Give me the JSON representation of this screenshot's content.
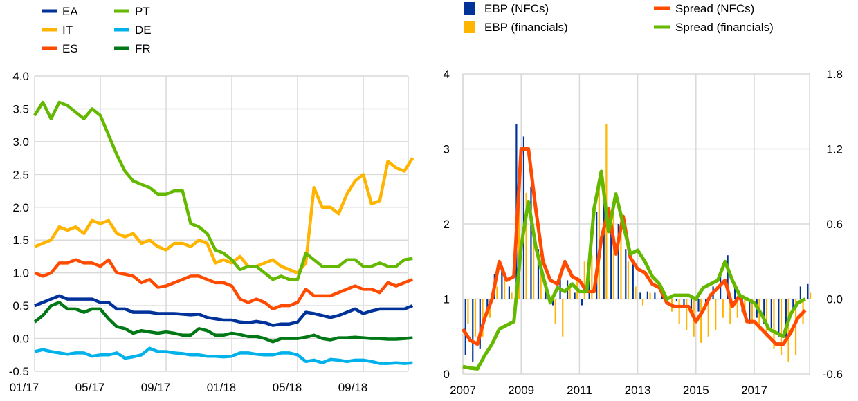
{
  "chart_data": [
    {
      "type": "line",
      "x_unit": "months since 01/17",
      "x_start": 0,
      "x_step": 0.5,
      "xlim": [
        0,
        23
      ],
      "ylim": [
        -0.5,
        4.0
      ],
      "yticks": [
        "4.0",
        "3.5",
        "3.0",
        "2.5",
        "2.0",
        "1.5",
        "1.0",
        "0.5",
        "0.0",
        "-0.5"
      ],
      "ytick_values": [
        4.0,
        3.5,
        3.0,
        2.5,
        2.0,
        1.5,
        1.0,
        0.5,
        0.0,
        -0.5
      ],
      "xticks": [
        "01/17",
        "05/17",
        "09/17",
        "01/18",
        "05/18",
        "09/18"
      ],
      "xtick_values": [
        0,
        4,
        8,
        12,
        16,
        20
      ],
      "grid": true,
      "legend_placement": "top-left",
      "series": [
        {
          "name": "EA",
          "color": "#003299",
          "values": [
            0.5,
            0.55,
            0.6,
            0.65,
            0.6,
            0.6,
            0.6,
            0.6,
            0.55,
            0.55,
            0.45,
            0.45,
            0.4,
            0.4,
            0.4,
            0.38,
            0.38,
            0.38,
            0.37,
            0.36,
            0.37,
            0.32,
            0.3,
            0.28,
            0.28,
            0.25,
            0.24,
            0.26,
            0.24,
            0.2,
            0.22,
            0.22,
            0.25,
            0.4,
            0.38,
            0.35,
            0.32,
            0.35,
            0.4,
            0.45,
            0.38,
            0.42,
            0.45,
            0.45,
            0.45,
            0.45,
            0.5
          ]
        },
        {
          "name": "IT",
          "color": "#FFB400",
          "values": [
            1.4,
            1.45,
            1.5,
            1.7,
            1.65,
            1.7,
            1.6,
            1.8,
            1.75,
            1.8,
            1.6,
            1.55,
            1.6,
            1.45,
            1.5,
            1.4,
            1.35,
            1.45,
            1.45,
            1.4,
            1.5,
            1.45,
            1.15,
            1.2,
            1.15,
            1.25,
            1.1,
            1.1,
            1.15,
            1.2,
            1.1,
            1.05,
            1.0,
            1.15,
            2.3,
            2.0,
            2.0,
            1.9,
            2.2,
            2.4,
            2.5,
            2.05,
            2.1,
            2.7,
            2.6,
            2.55,
            2.75
          ]
        },
        {
          "name": "ES",
          "color": "#FF4B00",
          "values": [
            1.0,
            0.95,
            1.0,
            1.15,
            1.15,
            1.2,
            1.15,
            1.15,
            1.1,
            1.2,
            1.0,
            0.98,
            0.95,
            0.85,
            0.9,
            0.78,
            0.8,
            0.85,
            0.9,
            0.95,
            0.95,
            0.9,
            0.85,
            0.85,
            0.8,
            0.6,
            0.55,
            0.6,
            0.55,
            0.45,
            0.5,
            0.5,
            0.55,
            0.75,
            0.65,
            0.65,
            0.65,
            0.7,
            0.75,
            0.8,
            0.75,
            0.75,
            0.7,
            0.85,
            0.8,
            0.85,
            0.9
          ]
        },
        {
          "name": "PT",
          "color": "#65B800",
          "values": [
            3.4,
            3.6,
            3.35,
            3.6,
            3.55,
            3.45,
            3.35,
            3.5,
            3.4,
            3.1,
            2.8,
            2.55,
            2.4,
            2.35,
            2.3,
            2.2,
            2.2,
            2.25,
            2.25,
            1.75,
            1.7,
            1.6,
            1.35,
            1.3,
            1.2,
            1.05,
            1.1,
            1.1,
            1.0,
            0.9,
            0.95,
            0.9,
            0.9,
            1.3,
            1.2,
            1.1,
            1.1,
            1.1,
            1.2,
            1.2,
            1.1,
            1.1,
            1.15,
            1.1,
            1.1,
            1.2,
            1.22
          ]
        },
        {
          "name": "DE",
          "color": "#00B1EA",
          "values": [
            -0.2,
            -0.17,
            -0.2,
            -0.22,
            -0.24,
            -0.22,
            -0.22,
            -0.27,
            -0.25,
            -0.25,
            -0.22,
            -0.3,
            -0.28,
            -0.25,
            -0.15,
            -0.2,
            -0.2,
            -0.22,
            -0.23,
            -0.25,
            -0.25,
            -0.27,
            -0.27,
            -0.28,
            -0.27,
            -0.22,
            -0.22,
            -0.24,
            -0.25,
            -0.25,
            -0.22,
            -0.22,
            -0.25,
            -0.35,
            -0.33,
            -0.37,
            -0.32,
            -0.33,
            -0.35,
            -0.33,
            -0.33,
            -0.35,
            -0.38,
            -0.38,
            -0.37,
            -0.38,
            -0.37
          ]
        },
        {
          "name": "FR",
          "color": "#007816",
          "values": [
            0.25,
            0.35,
            0.5,
            0.55,
            0.45,
            0.45,
            0.4,
            0.45,
            0.45,
            0.3,
            0.18,
            0.15,
            0.08,
            0.12,
            0.1,
            0.08,
            0.1,
            0.08,
            0.05,
            0.05,
            0.15,
            0.12,
            0.05,
            0.05,
            0.08,
            0.06,
            0.03,
            0.03,
            0.0,
            -0.05,
            0.0,
            0.0,
            0.0,
            0.02,
            0.05,
            0.0,
            -0.02,
            0.01,
            0.01,
            0.02,
            0.01,
            0.0,
            0.0,
            -0.01,
            -0.01,
            0.0,
            0.01
          ]
        }
      ]
    },
    {
      "type": "bar+line",
      "x_unit": "year",
      "x_start": 2007,
      "x_step": 0.25,
      "xlim": [
        2007,
        2018.9
      ],
      "xticks": [
        "2007",
        "2009",
        "2011",
        "2013",
        "2015",
        "2017"
      ],
      "xtick_values": [
        2007,
        2009,
        2011,
        2013,
        2015,
        2017
      ],
      "ylim_left": [
        0,
        4
      ],
      "yticks_left": [
        "4",
        "3",
        "2",
        "1",
        "0"
      ],
      "ytick_values_left": [
        4,
        3,
        2,
        1,
        0
      ],
      "ylim_right": [
        -0.6,
        1.8
      ],
      "yticks_right": [
        "1.8",
        "1.2",
        "0.6",
        "0.0",
        "-0.6"
      ],
      "ytick_values_right": [
        1.8,
        1.2,
        0.6,
        0.0,
        -0.6
      ],
      "grid": true,
      "legend_placement": "top",
      "bars": [
        {
          "name": "EBP (NFCs)",
          "color": "#003299",
          "axis": "right",
          "values": [
            -0.45,
            -0.5,
            -0.4,
            -0.1,
            0.2,
            0.25,
            0.1,
            1.4,
            1.3,
            0.9,
            0.4,
            0.1,
            -0.05,
            0.2,
            0.15,
            0.05,
            -0.05,
            0.15,
            0.7,
            0.85,
            0.7,
            0.6,
            0.4,
            0.3,
            0.05,
            0.06,
            0.05,
            0.03,
            0.0,
            -0.02,
            -0.05,
            -0.1,
            -0.1,
            -0.05,
            0.1,
            0.2,
            0.35,
            0.1,
            -0.1,
            -0.2,
            -0.15,
            -0.2,
            -0.25,
            -0.3,
            -0.3,
            -0.1,
            0.1,
            0.12
          ]
        },
        {
          "name": "EBP (financials)",
          "color": "#FFB400",
          "axis": "right",
          "values": [
            -0.2,
            -0.3,
            -0.3,
            -0.15,
            0.1,
            0.2,
            0.05,
            0.8,
            0.85,
            0.6,
            0.3,
            0.05,
            -0.2,
            -0.3,
            0.1,
            0.15,
            0.3,
            0.35,
            0.9,
            1.4,
            0.8,
            0.7,
            0.3,
            0.1,
            -0.05,
            0.05,
            0.0,
            0.0,
            -0.1,
            -0.2,
            -0.25,
            -0.3,
            -0.35,
            -0.3,
            -0.25,
            -0.15,
            -0.2,
            -0.15,
            -0.1,
            -0.2,
            -0.25,
            -0.3,
            -0.4,
            -0.45,
            -0.5,
            -0.45,
            -0.2,
            0.05
          ]
        }
      ],
      "series": [
        {
          "name": "Spread (NFCs)",
          "color": "#FF4B00",
          "axis": "left",
          "values": [
            0.6,
            0.45,
            0.4,
            0.75,
            1.0,
            1.5,
            1.25,
            1.3,
            3.0,
            3.0,
            2.2,
            1.5,
            1.25,
            1.2,
            1.5,
            1.3,
            1.25,
            1.1,
            1.1,
            1.8,
            2.2,
            1.6,
            2.1,
            1.55,
            1.4,
            1.35,
            1.2,
            1.15,
            0.95,
            0.9,
            0.9,
            0.9,
            0.7,
            0.85,
            1.05,
            1.15,
            1.25,
            0.9,
            1.05,
            0.7,
            0.7,
            0.6,
            0.5,
            0.4,
            0.4,
            0.55,
            0.75,
            0.85
          ]
        },
        {
          "name": "Spread (financials)",
          "color": "#65B800",
          "axis": "left",
          "values": [
            0.1,
            0.08,
            0.07,
            0.25,
            0.4,
            0.6,
            0.65,
            0.7,
            1.7,
            2.3,
            1.7,
            1.3,
            0.95,
            1.15,
            1.1,
            1.2,
            1.1,
            1.1,
            2.2,
            2.7,
            1.9,
            2.4,
            2.0,
            1.6,
            1.65,
            1.5,
            1.3,
            1.2,
            1.0,
            1.05,
            1.05,
            1.05,
            1.0,
            1.15,
            1.2,
            1.25,
            1.5,
            1.25,
            1.05,
            1.0,
            0.95,
            0.8,
            0.6,
            0.55,
            0.5,
            0.8,
            0.95,
            1.0
          ]
        }
      ]
    }
  ]
}
